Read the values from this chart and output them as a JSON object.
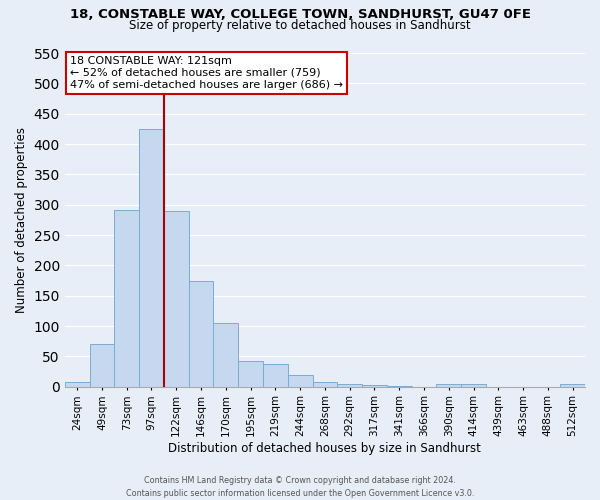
{
  "title": "18, CONSTABLE WAY, COLLEGE TOWN, SANDHURST, GU47 0FE",
  "subtitle": "Size of property relative to detached houses in Sandhurst",
  "xlabel": "Distribution of detached houses by size in Sandhurst",
  "ylabel": "Number of detached properties",
  "bar_labels": [
    "24sqm",
    "49sqm",
    "73sqm",
    "97sqm",
    "122sqm",
    "146sqm",
    "170sqm",
    "195sqm",
    "219sqm",
    "244sqm",
    "268sqm",
    "292sqm",
    "317sqm",
    "341sqm",
    "366sqm",
    "390sqm",
    "414sqm",
    "439sqm",
    "463sqm",
    "488sqm",
    "512sqm"
  ],
  "bar_values": [
    8,
    70,
    291,
    425,
    290,
    175,
    105,
    43,
    38,
    20,
    8,
    5,
    2,
    1,
    0,
    4,
    5,
    0,
    0,
    0,
    4
  ],
  "bar_color": "#c5d8f0",
  "bar_edge_color": "#7aadd4",
  "ylim": [
    0,
    550
  ],
  "yticks": [
    0,
    50,
    100,
    150,
    200,
    250,
    300,
    350,
    400,
    450,
    500,
    550
  ],
  "vline_color": "#aa0000",
  "annotation_title": "18 CONSTABLE WAY: 121sqm",
  "annotation_line1": "← 52% of detached houses are smaller (759)",
  "annotation_line2": "47% of semi-detached houses are larger (686) →",
  "annotation_box_color": "#ffffff",
  "annotation_box_edge": "#cc0000",
  "footer1": "Contains HM Land Registry data © Crown copyright and database right 2024.",
  "footer2": "Contains public sector information licensed under the Open Government Licence v3.0.",
  "background_color": "#e8eef7",
  "plot_background": "#e8eef7",
  "grid_color": "#ffffff"
}
